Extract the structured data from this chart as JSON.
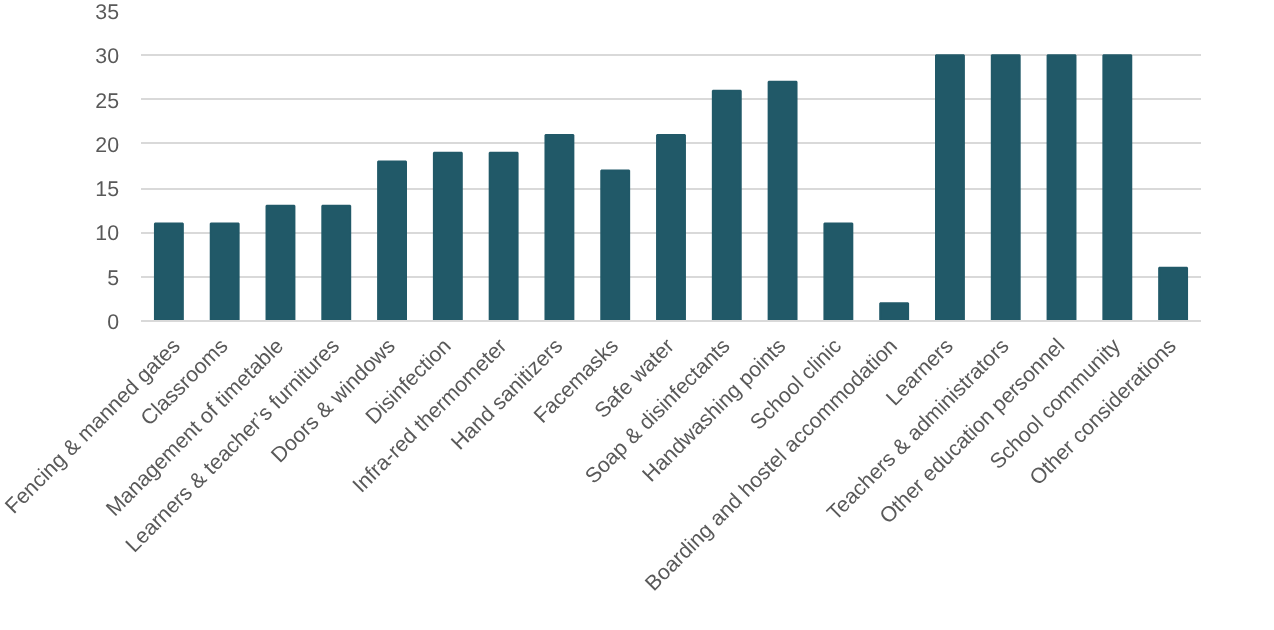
{
  "chart_data": {
    "type": "bar",
    "categories": [
      "Fencing & manned gates",
      "Classrooms",
      "Management of timetable",
      "Learners & teacher’s furnitures",
      "Doors & windows",
      "Disinfection",
      "Infra-red thermometer",
      "Hand sanitizers",
      "Facemasks",
      "Safe water",
      "Soap & disinfectants",
      "Handwashing points",
      "School clinic",
      "Boarding and hostel accommodation",
      "Learners",
      "Teachers & administrators",
      "Other education personnel",
      "School community",
      "Other considerations"
    ],
    "values": [
      11,
      11,
      13,
      13,
      18,
      19,
      19,
      21,
      17,
      21,
      26,
      27,
      11,
      2,
      30,
      30,
      30,
      30,
      6
    ],
    "color": "#215968",
    "ylim": [
      0,
      35
    ],
    "yticks": [
      0,
      5,
      10,
      15,
      20,
      25,
      30,
      35
    ],
    "grid": "y"
  }
}
